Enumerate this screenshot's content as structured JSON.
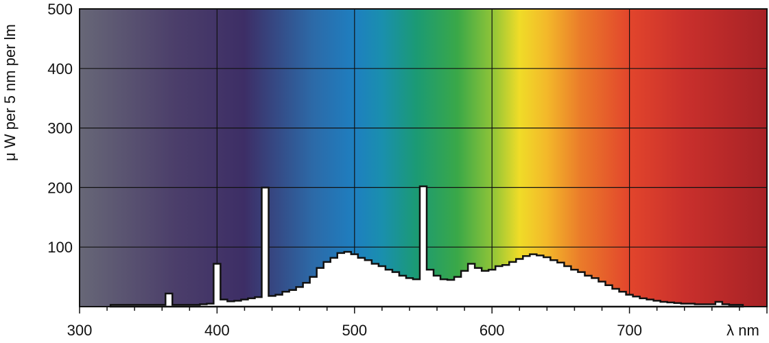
{
  "chart_data": {
    "type": "area",
    "xlabel": "λ nm",
    "ylabel": "μ W per 5 nm per lm",
    "xlim": [
      300,
      800
    ],
    "ylim": [
      0,
      500
    ],
    "x_ticks": [
      300,
      400,
      500,
      600,
      700
    ],
    "x_tick_labels": [
      "300",
      "400",
      "500",
      "600",
      "700"
    ],
    "y_ticks": [
      100,
      200,
      300,
      400,
      500
    ],
    "y_tick_labels": [
      "100",
      "200",
      "300",
      "400",
      "500"
    ],
    "grid": true,
    "background": "visible-spectrum color gradient",
    "series": [
      {
        "x": [
          325,
          330,
          335,
          340,
          345,
          350,
          355,
          360,
          365,
          370,
          375,
          380,
          385,
          390,
          395,
          400,
          405,
          410,
          415,
          420,
          425,
          430,
          435,
          440,
          445,
          450,
          455,
          460,
          465,
          470,
          475,
          480,
          485,
          490,
          495,
          500,
          505,
          510,
          515,
          520,
          525,
          530,
          535,
          540,
          545,
          550,
          555,
          560,
          565,
          570,
          575,
          580,
          585,
          590,
          595,
          600,
          605,
          610,
          615,
          620,
          625,
          630,
          635,
          640,
          645,
          650,
          655,
          660,
          665,
          670,
          675,
          680,
          685,
          690,
          695,
          700,
          705,
          710,
          715,
          720,
          725,
          730,
          735,
          740,
          745,
          750,
          755,
          760,
          765,
          770,
          775,
          780
        ],
        "y": [
          3,
          3,
          3,
          3,
          3,
          3,
          3,
          3,
          22,
          3,
          3,
          3,
          3,
          4,
          5,
          72,
          12,
          9,
          10,
          12,
          14,
          16,
          200,
          18,
          20,
          25,
          28,
          33,
          40,
          50,
          65,
          75,
          82,
          90,
          92,
          88,
          82,
          78,
          72,
          68,
          62,
          58,
          52,
          48,
          46,
          202,
          62,
          52,
          46,
          45,
          50,
          60,
          72,
          65,
          60,
          62,
          68,
          70,
          75,
          80,
          85,
          88,
          86,
          83,
          78,
          74,
          68,
          62,
          58,
          52,
          48,
          42,
          36,
          30,
          25,
          20,
          17,
          14,
          12,
          10,
          8,
          7,
          6,
          5,
          5,
          4,
          4,
          4,
          8,
          4,
          3,
          3
        ]
      }
    ]
  }
}
